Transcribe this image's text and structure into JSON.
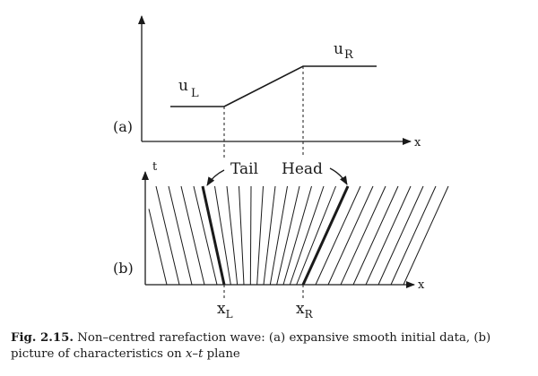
{
  "figure": {
    "panel_a": {
      "label": "(a)",
      "x_axis": "x",
      "u_left": "u",
      "u_left_sub": "L",
      "u_right": "u",
      "u_right_sub": "R"
    },
    "panel_b": {
      "label": "(b)",
      "x_axis": "x",
      "t_axis": "t",
      "tail": "Tail",
      "head": "Head",
      "x_left": "x",
      "x_left_sub": "L",
      "x_right": "x",
      "x_right_sub": "R"
    }
  },
  "caption": {
    "fig_label": "Fig. 2.15.",
    "text_1": " Non–centred rarefaction wave: (a) expansive smooth initial data, (b) picture of characteristics on ",
    "math": "x–t",
    "text_2": " plane"
  }
}
